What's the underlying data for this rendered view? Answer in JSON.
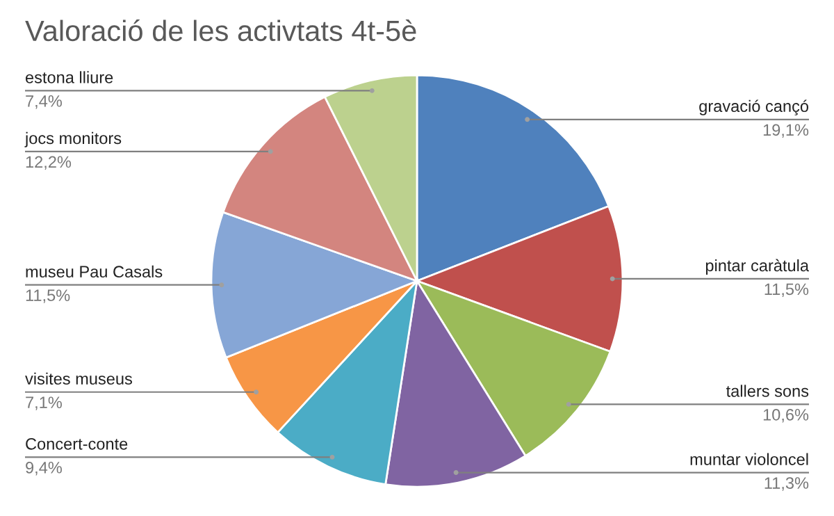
{
  "chart_data": {
    "type": "pie",
    "title": "Valoració de les activtats 4t-5è",
    "categories": [
      "gravació cançó",
      "pintar caràtula",
      "tallers sons",
      "muntar violoncel",
      "Concert-conte",
      "visites museus",
      "museu Pau Casals",
      "jocs monitors",
      "estona lliure"
    ],
    "values": [
      19.1,
      11.5,
      10.6,
      11.3,
      9.4,
      7.1,
      11.5,
      12.2,
      7.4
    ],
    "value_labels": [
      "19,1%",
      "11,5%",
      "10,6%",
      "11,3%",
      "9,4%",
      "7,1%",
      "11,5%",
      "12,2%",
      "7,4%"
    ],
    "colors": [
      "#4f81bd",
      "#c0504d",
      "#9bbb59",
      "#8064a2",
      "#4bacc6",
      "#f79646",
      "#86a6d6",
      "#d3857f",
      "#bcd18e"
    ]
  }
}
